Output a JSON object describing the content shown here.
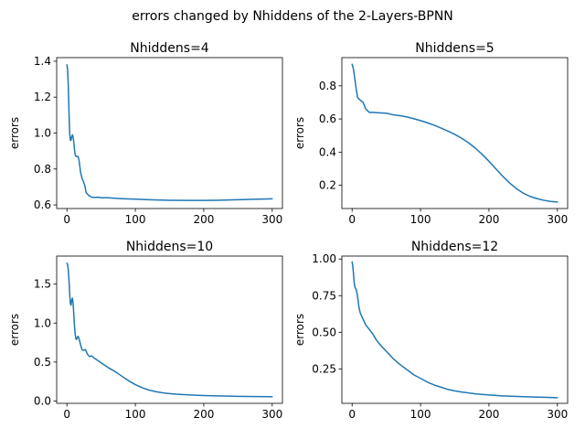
{
  "figure": {
    "suptitle": "errors changed by Nhiddens of the 2-Layers-BPNN",
    "line_color": "#1f77b4"
  },
  "chart_data": [
    {
      "type": "line",
      "title": "Nhiddens=4",
      "xlabel": "",
      "ylabel": "errors",
      "xlim": [
        -15,
        315
      ],
      "ylim": [
        0.58,
        1.42
      ],
      "xticks": [
        0,
        100,
        200,
        300
      ],
      "yticks": [
        0.6,
        0.8,
        1.0,
        1.2,
        1.4
      ],
      "ytick_labels": [
        "0.6",
        "0.8",
        "1.0",
        "1.2",
        "1.4"
      ],
      "x": [
        0,
        1,
        2,
        3,
        4,
        5,
        6,
        7,
        8,
        9,
        10,
        11,
        12,
        13,
        14,
        15,
        16,
        17,
        18,
        19,
        20,
        22,
        24,
        26,
        28,
        30,
        33,
        36,
        40,
        45,
        50,
        60,
        70,
        80,
        100,
        120,
        150,
        180,
        200,
        220,
        250,
        280,
        300
      ],
      "y": [
        1.38,
        1.35,
        1.26,
        1.12,
        1.0,
        0.96,
        0.96,
        0.98,
        0.99,
        0.98,
        0.95,
        0.91,
        0.88,
        0.87,
        0.87,
        0.87,
        0.87,
        0.86,
        0.84,
        0.81,
        0.78,
        0.75,
        0.73,
        0.71,
        0.67,
        0.66,
        0.65,
        0.643,
        0.642,
        0.643,
        0.64,
        0.64,
        0.637,
        0.635,
        0.632,
        0.629,
        0.626,
        0.625,
        0.625,
        0.626,
        0.629,
        0.632,
        0.634
      ]
    },
    {
      "type": "line",
      "title": "Nhiddens=5",
      "xlabel": "",
      "ylabel": "errors",
      "xlim": [
        -15,
        315
      ],
      "ylim": [
        0.06,
        0.97
      ],
      "xticks": [
        0,
        100,
        200,
        300
      ],
      "yticks": [
        0.2,
        0.4,
        0.6,
        0.8
      ],
      "ytick_labels": [
        "0.2",
        "0.4",
        "0.6",
        "0.8"
      ],
      "x": [
        0,
        2,
        4,
        6,
        8,
        10,
        13,
        16,
        20,
        25,
        30,
        40,
        50,
        60,
        70,
        80,
        90,
        100,
        110,
        120,
        130,
        140,
        150,
        160,
        170,
        180,
        190,
        200,
        210,
        220,
        230,
        240,
        250,
        260,
        270,
        280,
        290,
        300
      ],
      "y": [
        0.93,
        0.9,
        0.84,
        0.78,
        0.73,
        0.72,
        0.71,
        0.7,
        0.66,
        0.64,
        0.64,
        0.637,
        0.635,
        0.625,
        0.62,
        0.612,
        0.602,
        0.59,
        0.577,
        0.562,
        0.545,
        0.527,
        0.507,
        0.484,
        0.457,
        0.424,
        0.387,
        0.345,
        0.3,
        0.255,
        0.215,
        0.18,
        0.153,
        0.133,
        0.12,
        0.11,
        0.103,
        0.099
      ]
    },
    {
      "type": "line",
      "title": "Nhiddens=10",
      "xlabel": "",
      "ylabel": "errors",
      "xlim": [
        -15,
        315
      ],
      "ylim": [
        -0.03,
        1.86
      ],
      "xticks": [
        0,
        100,
        200,
        300
      ],
      "yticks": [
        0.0,
        0.5,
        1.0,
        1.5
      ],
      "ytick_labels": [
        "0.0",
        "0.5",
        "1.0",
        "1.5"
      ],
      "x": [
        0,
        1,
        2,
        3,
        4,
        5,
        6,
        7,
        8,
        9,
        10,
        11,
        12,
        13,
        14,
        15,
        16,
        17,
        18,
        20,
        22,
        24,
        27,
        30,
        33,
        36,
        40,
        45,
        50,
        55,
        60,
        70,
        80,
        90,
        100,
        110,
        120,
        130,
        140,
        150,
        160,
        180,
        200,
        220,
        250,
        280,
        300
      ],
      "y": [
        1.77,
        1.75,
        1.68,
        1.55,
        1.38,
        1.25,
        1.23,
        1.3,
        1.32,
        1.26,
        1.12,
        0.97,
        0.86,
        0.8,
        0.79,
        0.81,
        0.83,
        0.82,
        0.79,
        0.72,
        0.66,
        0.65,
        0.66,
        0.6,
        0.57,
        0.58,
        0.55,
        0.52,
        0.49,
        0.46,
        0.43,
        0.38,
        0.32,
        0.26,
        0.21,
        0.17,
        0.14,
        0.12,
        0.105,
        0.095,
        0.087,
        0.077,
        0.07,
        0.065,
        0.06,
        0.057,
        0.055
      ]
    },
    {
      "type": "line",
      "title": "Nhiddens=12",
      "xlabel": "",
      "ylabel": "errors",
      "xlim": [
        -15,
        315
      ],
      "ylim": [
        0.015,
        1.02
      ],
      "xticks": [
        0,
        100,
        200,
        300
      ],
      "yticks": [
        0.25,
        0.5,
        0.75,
        1.0
      ],
      "ytick_labels": [
        "0.25",
        "0.50",
        "0.75",
        "1.00"
      ],
      "x": [
        0,
        1,
        2,
        3,
        4,
        5,
        6,
        7,
        8,
        9,
        10,
        12,
        14,
        16,
        18,
        20,
        25,
        30,
        35,
        40,
        50,
        60,
        70,
        80,
        90,
        100,
        110,
        120,
        130,
        140,
        150,
        160,
        180,
        200,
        220,
        250,
        280,
        300
      ],
      "y": [
        0.98,
        0.95,
        0.9,
        0.84,
        0.81,
        0.8,
        0.79,
        0.77,
        0.74,
        0.71,
        0.67,
        0.63,
        0.61,
        0.59,
        0.57,
        0.55,
        0.52,
        0.49,
        0.45,
        0.42,
        0.37,
        0.32,
        0.28,
        0.245,
        0.21,
        0.185,
        0.16,
        0.14,
        0.125,
        0.11,
        0.1,
        0.092,
        0.08,
        0.072,
        0.066,
        0.06,
        0.056,
        0.053
      ]
    }
  ]
}
